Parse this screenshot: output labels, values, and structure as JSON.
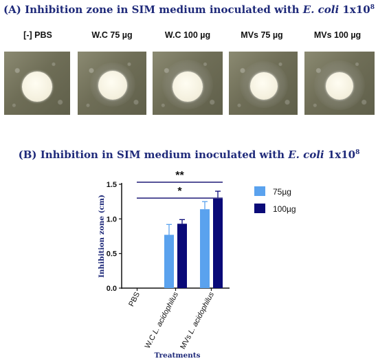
{
  "panel_a": {
    "title_prefix": "(A) Inhibition zone in SIM medium inoculated with ",
    "title_organism": "E. coli",
    "title_suffix": " 1x10",
    "title_exponent": "8",
    "labels": [
      "[-] PBS",
      "W.C 75 µg",
      "W.C 100 µg",
      "MVs 75 µg",
      "MVs 100 µg"
    ]
  },
  "chart_data": {
    "type": "bar",
    "title_prefix": "(B) Inhibition in SIM medium inoculated with ",
    "title_organism": "E. coli",
    "title_suffix": " 1x10",
    "title_exponent": "8",
    "xlabel": "Treatments",
    "ylabel": "Inhibition zone (cm)",
    "ylim": [
      0,
      1.5
    ],
    "yticks": [
      "0.0",
      "0.5",
      "1.0",
      "1.5"
    ],
    "categories": [
      {
        "plain": "PBS",
        "italic": ""
      },
      {
        "plain": "W.C ",
        "italic": "L. acidophilus"
      },
      {
        "plain": "MVs ",
        "italic": "L. acidophilus"
      }
    ],
    "series": [
      {
        "name": "75µg",
        "color": "#5aa2ee",
        "values": [
          0,
          0.77,
          1.14
        ],
        "errors": [
          0,
          0.15,
          0.11
        ]
      },
      {
        "name": "100µg",
        "color": "#0a0a78",
        "values": [
          0,
          0.93,
          1.3
        ],
        "errors": [
          0,
          0.06,
          0.1
        ]
      }
    ],
    "significance": [
      {
        "label": "**",
        "from": 0,
        "to": 2,
        "y": 1.53
      },
      {
        "label": "*",
        "from": 0,
        "to": 2,
        "y": 1.3
      }
    ],
    "legend_position": "right",
    "grid": false
  }
}
